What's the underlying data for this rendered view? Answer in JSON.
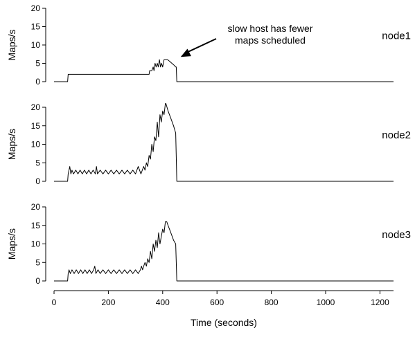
{
  "chart_data": {
    "type": "line",
    "xlabel": "Time (seconds)",
    "xlim": [
      0,
      1250
    ],
    "xticks": [
      0,
      200,
      400,
      600,
      800,
      1000,
      1200
    ],
    "annotation": {
      "lines": [
        "slow host has fewer",
        "maps scheduled"
      ],
      "target": {
        "x": 405,
        "y": 6
      }
    },
    "panels": [
      {
        "label": "node1",
        "ylabel": "Maps/s",
        "ylim": [
          0,
          20
        ],
        "yticks": [
          0,
          5,
          10,
          15,
          20
        ],
        "series": [
          {
            "x": [
              0,
              50,
              52,
              58,
              100,
              200,
              300,
              350,
              352,
              360,
              365,
              368,
              372,
              376,
              380,
              384,
              388,
              392,
              396,
              400,
              405,
              410,
              418,
              426,
              434,
              442,
              448,
              450,
              452,
              600,
              800,
              1000,
              1200,
              1250
            ],
            "y": [
              0,
              0,
              2,
              2,
              2,
              2,
              2,
              2,
              3,
              3,
              4,
              3,
              5,
              4,
              5,
              4,
              6,
              4,
              5,
              4,
              6,
              6,
              6,
              5.5,
              5,
              4.5,
              4,
              4,
              0,
              0,
              0,
              0,
              0,
              0
            ]
          }
        ]
      },
      {
        "label": "node2",
        "ylabel": "Maps/s",
        "ylim": [
          0,
          20
        ],
        "yticks": [
          0,
          5,
          10,
          15,
          20
        ],
        "series": [
          {
            "x": [
              0,
              50,
              52,
              55,
              58,
              62,
              66,
              72,
              80,
              88,
              96,
              104,
              112,
              120,
              128,
              136,
              144,
              152,
              156,
              160,
              170,
              180,
              190,
              200,
              210,
              220,
              230,
              240,
              250,
              260,
              270,
              280,
              290,
              300,
              310,
              320,
              325,
              330,
              335,
              340,
              345,
              350,
              355,
              360,
              365,
              370,
              375,
              380,
              385,
              390,
              395,
              400,
              405,
              410,
              412,
              420,
              430,
              440,
              448,
              452,
              600,
              800,
              1000,
              1200,
              1250
            ],
            "y": [
              0,
              0,
              2,
              3,
              4,
              2,
              3,
              2,
              3,
              2,
              3,
              2,
              3,
              2,
              3,
              2,
              3,
              2,
              4,
              2,
              3,
              2,
              3,
              2,
              3,
              2,
              3,
              2,
              3,
              2,
              3,
              2,
              3,
              2,
              4,
              2,
              3,
              4,
              3,
              5,
              4,
              7,
              6,
              10,
              8,
              12,
              11,
              16,
              12,
              18,
              16,
              19,
              18,
              21,
              21,
              19,
              17,
              15,
              13,
              0,
              0,
              0,
              0,
              0,
              0
            ]
          }
        ]
      },
      {
        "label": "node3",
        "ylabel": "Maps/s",
        "ylim": [
          0,
          20
        ],
        "yticks": [
          0,
          5,
          10,
          15,
          20
        ],
        "series": [
          {
            "x": [
              0,
              50,
              52,
              55,
              60,
              66,
              74,
              82,
              90,
              98,
              106,
              114,
              122,
              130,
              138,
              146,
              150,
              154,
              162,
              170,
              180,
              190,
              200,
              210,
              220,
              230,
              240,
              250,
              260,
              270,
              280,
              290,
              300,
              310,
              318,
              322,
              326,
              330,
              335,
              340,
              345,
              350,
              355,
              360,
              365,
              370,
              375,
              380,
              385,
              390,
              395,
              400,
              405,
              410,
              415,
              420,
              430,
              440,
              448,
              452,
              600,
              800,
              1000,
              1200,
              1250
            ],
            "y": [
              0,
              0,
              2,
              3,
              2,
              3,
              2,
              3,
              2,
              3,
              2,
              3,
              2,
              3,
              2,
              3,
              4,
              2,
              3,
              2,
              3,
              2,
              3,
              2,
              3,
              2,
              3,
              2,
              3,
              2,
              3,
              2,
              3,
              2,
              3,
              4,
              3,
              4,
              5,
              4,
              6,
              5,
              8,
              6,
              10,
              8,
              11,
              9,
              13,
              10,
              12,
              14,
              13,
              16,
              16,
              15,
              13,
              11,
              10,
              0,
              0,
              0,
              0,
              0,
              0
            ]
          }
        ]
      }
    ]
  }
}
